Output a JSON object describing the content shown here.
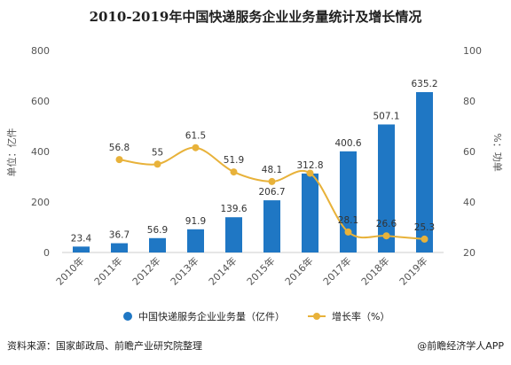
{
  "chart_data": {
    "type": "bar",
    "title": "2010-2019年中国快递服务企业业务量统计及增长情况",
    "categories": [
      "2010年",
      "2011年",
      "2012年",
      "2013年",
      "2014年",
      "2015年",
      "2016年",
      "2017年",
      "2018年",
      "2019年"
    ],
    "series": [
      {
        "name": "中国快递服务企业业务量（亿件）",
        "type": "bar",
        "axis": "left",
        "color": "#1f77c4",
        "values": [
          23.4,
          36.7,
          56.9,
          91.9,
          139.6,
          206.7,
          312.8,
          400.6,
          507.1,
          635.2
        ]
      },
      {
        "name": "增长率（%）",
        "type": "line",
        "axis": "right",
        "color": "#e8b23a",
        "values": [
          null,
          56.8,
          55,
          61.5,
          51.9,
          48.1,
          51.4,
          28.1,
          26.6,
          25.3
        ],
        "labels": [
          "",
          "56.8",
          "55",
          "61.5",
          "51.9",
          "48.1",
          "",
          "28.1",
          "26.6",
          "25.3"
        ]
      }
    ],
    "ylabel_left": "单位：亿件",
    "ylabel_right": "%：功单",
    "ylim_left": [
      0,
      800
    ],
    "ylim_right": [
      20,
      100
    ],
    "yticks_left": [
      "0",
      "200",
      "400",
      "600",
      "800"
    ],
    "yticks_right": [
      "20",
      "40",
      "60",
      "80",
      "100"
    ],
    "grid": false,
    "legend": "bottom-center"
  },
  "footer": {
    "source": "资料来源：国家邮政局、前瞻产业研究院整理",
    "brand": "@前瞻经济学人APP"
  }
}
